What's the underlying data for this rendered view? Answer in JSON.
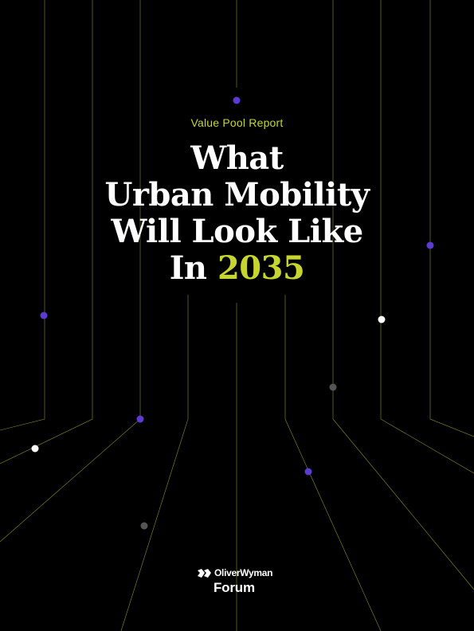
{
  "cover": {
    "eyebrow": "Value Pool Report",
    "title_lines": [
      "What",
      "Urban Mobility",
      "Will Look Like"
    ],
    "title_last_prefix": "In",
    "title_year": "2035"
  },
  "brand": {
    "name": "OliverWyman",
    "sub": "Forum"
  },
  "colors": {
    "background": "#000000",
    "accent": "#c6d62f",
    "line": "#8a8f2a",
    "dot_purple": "#5b3bd1",
    "dot_white": "#ffffff",
    "dot_gray": "#555555"
  }
}
